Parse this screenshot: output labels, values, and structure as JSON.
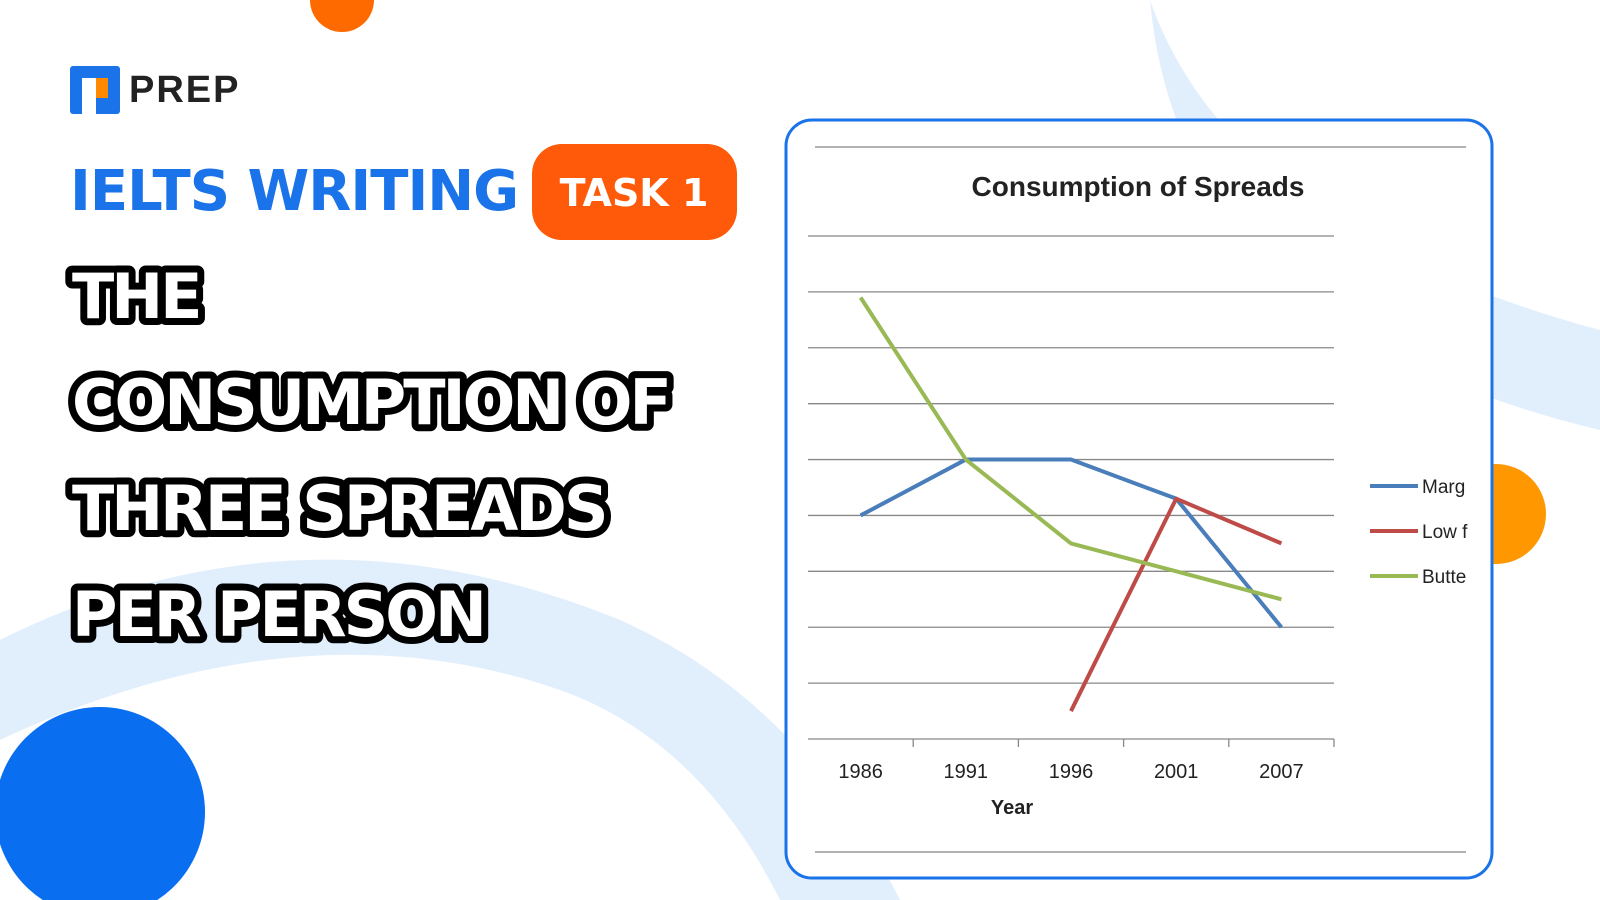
{
  "brand": "PREP",
  "header": {
    "label": "IELTS WRITING",
    "badge": "TASK 1",
    "title_lines": [
      "THE",
      "CONSUMPTION OF",
      "THREE SPREADS",
      "PER PERSON"
    ]
  },
  "chart_data": {
    "type": "line",
    "title": "Consumption of Spreads",
    "x_label": "Year",
    "categories": [
      "1986",
      "1991",
      "1996",
      "2001",
      "2007"
    ],
    "series": [
      {
        "name": "Marg",
        "color": "#4a7ebb",
        "values": [
          4.0,
          5.0,
          5.0,
          4.3,
          2.0
        ]
      },
      {
        "name": "Low f",
        "color": "#be4b48",
        "values": [
          null,
          null,
          0.5,
          4.3,
          3.5
        ]
      },
      {
        "name": "Butte",
        "color": "#98b954",
        "values": [
          7.9,
          5.0,
          3.5,
          3.0,
          2.5
        ]
      }
    ],
    "ylim": [
      0,
      9
    ],
    "yticks": [
      0,
      1,
      2,
      3,
      4,
      5,
      6,
      7,
      8,
      9
    ],
    "ytick_labels": false,
    "grid": true,
    "legend": "right"
  }
}
